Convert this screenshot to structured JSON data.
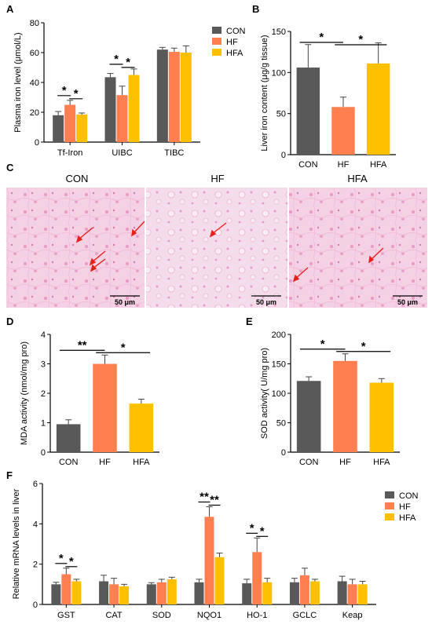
{
  "colors": {
    "CON": "#595959",
    "HF": "#ff7f50",
    "HFA": "#ffc000"
  },
  "histology": {
    "titles": [
      "CON",
      "HF",
      "HFA"
    ],
    "scale_bar": "50 μm"
  },
  "chart_data": [
    {
      "panel": "A",
      "type": "bar",
      "ylabel": "Plasma iron level (μmol/L)",
      "ylim": [
        0,
        80
      ],
      "yticks": [
        0,
        20,
        40,
        60,
        80
      ],
      "categories": [
        "Tf-Iron",
        "UIBC",
        "TIBC"
      ],
      "legend": [
        "CON",
        "HF",
        "HFA"
      ],
      "series": [
        {
          "name": "CON",
          "values": [
            18,
            43.5,
            62
          ],
          "err": [
            2.5,
            2.5,
            1.5
          ]
        },
        {
          "name": "HF",
          "values": [
            25,
            31.5,
            60.5
          ],
          "err": [
            3,
            6,
            2.5
          ]
        },
        {
          "name": "HFA",
          "values": [
            18.5,
            45,
            60
          ],
          "err": [
            1,
            4,
            4.5
          ]
        }
      ],
      "significance": [
        {
          "category": 0,
          "from": 0,
          "to": 1,
          "label": "*"
        },
        {
          "category": 0,
          "from": 1,
          "to": 2,
          "label": "*"
        },
        {
          "category": 1,
          "from": 0,
          "to": 1,
          "label": "*"
        },
        {
          "category": 1,
          "from": 1,
          "to": 2,
          "label": "*"
        }
      ]
    },
    {
      "panel": "B",
      "type": "bar",
      "ylabel": "Liver iron content (μg/g tissue)",
      "ylim": [
        0,
        150
      ],
      "yticks": [
        0,
        50,
        100,
        150
      ],
      "categories": [
        "CON",
        "HF",
        "HFA"
      ],
      "values": [
        106,
        58,
        111
      ],
      "err": [
        28,
        12,
        25
      ],
      "significance": [
        {
          "from": 0,
          "to": 1,
          "label": "*"
        },
        {
          "from": 1,
          "to": 2,
          "label": "*"
        }
      ]
    },
    {
      "panel": "D",
      "type": "bar",
      "ylabel": "MDA activity (nmol/mg pro)",
      "ylim": [
        0,
        4
      ],
      "yticks": [
        0,
        1,
        2,
        3,
        4
      ],
      "categories": [
        "CON",
        "HF",
        "HFA"
      ],
      "values": [
        0.95,
        3.0,
        1.65
      ],
      "err": [
        0.15,
        0.3,
        0.15
      ],
      "significance": [
        {
          "from": 0,
          "to": 1,
          "label": "**"
        },
        {
          "from": 1,
          "to": 2,
          "label": "*"
        }
      ]
    },
    {
      "panel": "E",
      "type": "bar",
      "ylabel": "SOD activity( U/mg pro)",
      "ylim": [
        0,
        200
      ],
      "yticks": [
        0,
        50,
        100,
        150,
        200
      ],
      "categories": [
        "CON",
        "HF",
        "HFA"
      ],
      "values": [
        121,
        155,
        118
      ],
      "err": [
        7,
        12,
        7
      ],
      "significance": [
        {
          "from": 0,
          "to": 1,
          "label": "*"
        },
        {
          "from": 1,
          "to": 2,
          "label": "*"
        }
      ]
    },
    {
      "panel": "F",
      "type": "bar",
      "ylabel": "Relative mRNA  levels in liver",
      "ylim": [
        0,
        6
      ],
      "yticks": [
        0,
        2,
        4,
        6
      ],
      "categories": [
        "GST",
        "CAT",
        "SOD",
        "NQO1",
        "HO-1",
        "GCLC",
        "Keap"
      ],
      "legend": [
        "CON",
        "HF",
        "HFA"
      ],
      "series": [
        {
          "name": "CON",
          "values": [
            1.0,
            1.15,
            1.0,
            1.1,
            1.05,
            1.1,
            1.15
          ],
          "err": [
            0.1,
            0.3,
            0.08,
            0.15,
            0.2,
            0.2,
            0.25
          ]
        },
        {
          "name": "HF",
          "values": [
            1.5,
            1.0,
            1.1,
            4.35,
            2.6,
            1.45,
            1.0
          ],
          "err": [
            0.3,
            0.3,
            0.15,
            0.5,
            0.7,
            0.35,
            0.25
          ]
        },
        {
          "name": "HFA",
          "values": [
            1.15,
            0.9,
            1.25,
            2.35,
            1.1,
            1.15,
            1.0
          ],
          "err": [
            0.1,
            0.1,
            0.1,
            0.2,
            0.2,
            0.1,
            0.15
          ]
        }
      ],
      "significance": [
        {
          "category": 0,
          "from": 0,
          "to": 1,
          "label": "*"
        },
        {
          "category": 0,
          "from": 1,
          "to": 2,
          "label": "*"
        },
        {
          "category": 3,
          "from": 0,
          "to": 1,
          "label": "**"
        },
        {
          "category": 3,
          "from": 1,
          "to": 2,
          "label": "**"
        },
        {
          "category": 4,
          "from": 0,
          "to": 1,
          "label": "*"
        },
        {
          "category": 4,
          "from": 1,
          "to": 2,
          "label": "*"
        }
      ]
    }
  ]
}
